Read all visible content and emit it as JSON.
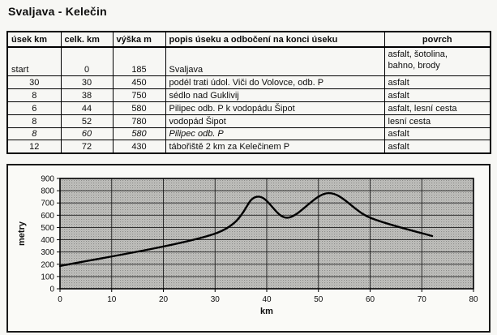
{
  "title": "Svaljava - Kelečin",
  "table": {
    "headers": [
      "úsek km",
      "celk. km",
      "výška m",
      "popis úseku a odbočení na konci úseku",
      "povrch"
    ],
    "rows": [
      {
        "usek": "start",
        "celk": "0",
        "vyska": "185",
        "popis": "Svaljava",
        "povrch": [
          "asfalt, šotolina,",
          "bahno, brody"
        ],
        "style": "start"
      },
      {
        "usek": "30",
        "celk": "30",
        "vyska": "450",
        "popis": "podél trati údol. Viči do Volovce, odb. P",
        "povrch": "asfalt",
        "style": "normal"
      },
      {
        "usek": "8",
        "celk": "38",
        "vyska": "750",
        "popis": "sédlo nad Guklivij",
        "povrch": "asfalt",
        "style": "normal"
      },
      {
        "usek": "6",
        "celk": "44",
        "vyska": "580",
        "popis": "Pilipec odb. P k vodopádu Šipot",
        "povrch": "asfalt, lesní cesta",
        "style": "normal"
      },
      {
        "usek": "8",
        "celk": "52",
        "vyska": "780",
        "popis": "vodopád Šipot",
        "povrch": "lesní cesta",
        "style": "normal"
      },
      {
        "usek": "8",
        "celk": "60",
        "vyska": "580",
        "popis": "Pilipec odb. P",
        "povrch": "asfalt",
        "style": "italic"
      },
      {
        "usek": "12",
        "celk": "72",
        "vyska": "430",
        "popis": "tábořiště 2 km za Kelečinem P",
        "povrch": "asfalt",
        "style": "normal"
      }
    ]
  },
  "chart_data": {
    "type": "line",
    "title": "",
    "xlabel": "km",
    "ylabel": "metry",
    "x": [
      0,
      30,
      38,
      44,
      52,
      60,
      72
    ],
    "y": [
      185,
      450,
      750,
      580,
      780,
      580,
      430
    ],
    "xlim": [
      0,
      80
    ],
    "ylim": [
      0,
      900
    ],
    "xticks": [
      0,
      10,
      20,
      30,
      40,
      50,
      60,
      70,
      80
    ],
    "yticks": [
      0,
      100,
      200,
      300,
      400,
      500,
      600,
      700,
      800,
      900
    ],
    "grid": true,
    "legend": false,
    "line_color": "#000000",
    "plot_bg": "#c3c3c0",
    "grid_color": "#1c1c1c"
  }
}
